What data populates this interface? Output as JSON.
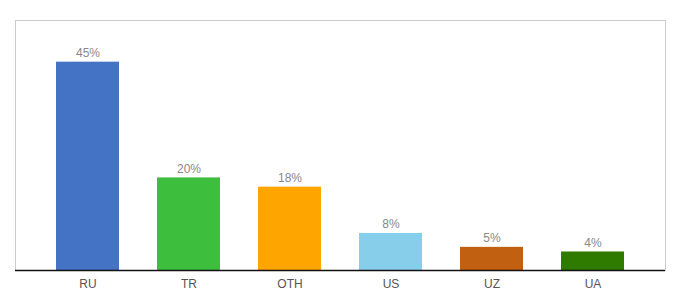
{
  "chart_data": {
    "type": "bar",
    "categories": [
      "RU",
      "TR",
      "OTH",
      "US",
      "UZ",
      "UA"
    ],
    "values": [
      45,
      20,
      18,
      8,
      5,
      4
    ],
    "value_labels": [
      "45%",
      "20%",
      "18%",
      "8%",
      "5%",
      "4%"
    ],
    "colors": [
      "#4472C4",
      "#3DBE3D",
      "#FFA500",
      "#87CEEB",
      "#C06010",
      "#2E7B00"
    ],
    "ylim": [
      0,
      54
    ],
    "data_labels": true,
    "tick_labels": "x",
    "grid": false
  }
}
